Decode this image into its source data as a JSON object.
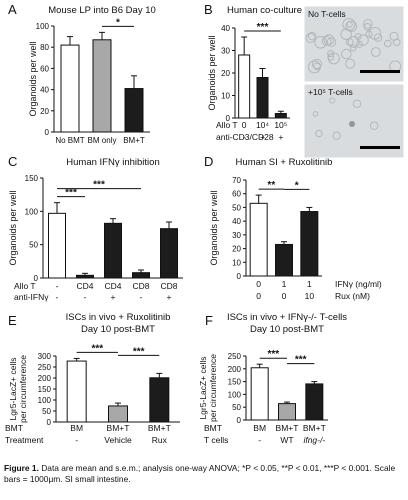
{
  "colors": {
    "bar_white": "#ffffff",
    "bar_gray": "#a8a8a8",
    "bar_black": "#1c1c1c",
    "axis": "#111111",
    "micro_bg": "#d9dcde",
    "organoid": "#b2b7bb",
    "scale_bar": "#000000"
  },
  "caption": {
    "label": "Figure 1.",
    "text": "Data are mean and s.e.m.; analysis one-way ANOVA; *P < 0.05, **P < 0.01, ***P < 0.001. Scale bars = 1000μm. SI small intestine."
  },
  "panels": {
    "A": {
      "letter": "A"
    },
    "B": {
      "letter": "B",
      "img_top_label": "No T-cells",
      "img_bottom_label": "+10⁵ T-cells"
    },
    "C": {
      "letter": "C"
    },
    "D": {
      "letter": "D"
    },
    "E": {
      "letter": "E"
    },
    "F": {
      "letter": "F"
    }
  },
  "chart_data": [
    {
      "panel": "A",
      "type": "bar",
      "title": "Mouse LP into B6 Day 10",
      "ylabel": "Organoids per well",
      "ylim": [
        0,
        100
      ],
      "yticks": [
        0,
        20,
        40,
        60,
        80,
        100
      ],
      "grid": false,
      "categories": [
        "No BMT",
        "BM only",
        "BM+T"
      ],
      "values": [
        82,
        87,
        41
      ],
      "errors": [
        8,
        7,
        12
      ],
      "fills": [
        "white",
        "gray",
        "black"
      ],
      "significance": [
        {
          "from": 1,
          "to": 2,
          "label": "*"
        }
      ]
    },
    {
      "panel": "B",
      "type": "bar",
      "title": "Human co-culture",
      "ylabel": "Organoids per well",
      "ylim": [
        0,
        40
      ],
      "yticks": [
        0,
        10,
        20,
        30,
        40
      ],
      "grid": false,
      "categories": [
        "0",
        "10⁴",
        "10⁵"
      ],
      "values": [
        28,
        18,
        2
      ],
      "errors": [
        8,
        4,
        1
      ],
      "fills": [
        "white",
        "black",
        "black"
      ],
      "row_labels": [
        {
          "label": "Allo T",
          "values": [
            "0",
            "10⁴",
            "10⁵"
          ]
        },
        {
          "label": "anti-CD3/CD28",
          "values": [
            "-",
            "+",
            "+"
          ]
        }
      ],
      "significance": [
        {
          "from": 0,
          "to": 2,
          "label": "***"
        }
      ]
    },
    {
      "panel": "C",
      "type": "bar",
      "title": "Human IFNγ inhibition",
      "ylabel": "Organoids per well",
      "ylim": [
        0,
        150
      ],
      "yticks": [
        0,
        50,
        100,
        150
      ],
      "grid": false,
      "categories": [
        "-",
        "CD4",
        "CD4",
        "CD8",
        "CD8"
      ],
      "values": [
        97,
        4,
        82,
        8,
        74
      ],
      "errors": [
        16,
        3,
        7,
        4,
        10
      ],
      "fills": [
        "white",
        "black",
        "black",
        "black",
        "black"
      ],
      "row_labels": [
        {
          "label": "Allo T",
          "values": [
            "-",
            "CD4",
            "CD4",
            "CD8",
            "CD8"
          ]
        },
        {
          "label": "anti-IFNγ",
          "values": [
            "-",
            "-",
            "+",
            "-",
            "+"
          ]
        }
      ],
      "significance": [
        {
          "from": 0,
          "to": 1,
          "label": "***"
        },
        {
          "from": 0,
          "to": 3,
          "label": "***"
        }
      ]
    },
    {
      "panel": "D",
      "type": "bar",
      "title": "Human SI + Ruxolitinib",
      "ylabel": "Organoids per well",
      "ylim": [
        0,
        70
      ],
      "yticks": [
        0,
        10,
        20,
        30,
        40,
        50,
        60,
        70
      ],
      "grid": false,
      "categories": [
        "0",
        "1",
        "1"
      ],
      "values": [
        53,
        23,
        47
      ],
      "errors": [
        6,
        2,
        3
      ],
      "fills": [
        "white",
        "black",
        "black"
      ],
      "row_labels": [
        {
          "label": "IFNγ (ng/ml)",
          "values": [
            "0",
            "1",
            "1"
          ]
        },
        {
          "label": "Rux (nM)",
          "values": [
            "0",
            "0",
            "10"
          ]
        }
      ],
      "significance": [
        {
          "from": 0,
          "to": 1,
          "label": "**"
        },
        {
          "from": 1,
          "to": 2,
          "label": "*"
        }
      ]
    },
    {
      "panel": "E",
      "type": "bar",
      "title_line1": "ISCs in vivo + Ruxolitinib",
      "title_line2": "Day 10 post-BMT",
      "ylabel": "Lgr5-LacZ+ cells per circumference",
      "ylim": [
        0,
        300
      ],
      "yticks": [
        0,
        50,
        100,
        150,
        200,
        250,
        300
      ],
      "grid": false,
      "categories": [
        "BM",
        "BM+T",
        "BM+T"
      ],
      "values": [
        277,
        73,
        201
      ],
      "errors": [
        12,
        13,
        20
      ],
      "fills": [
        "white",
        "gray",
        "black"
      ],
      "row_labels": [
        {
          "label": "BMT",
          "values": [
            "BM",
            "BM+T",
            "BM+T"
          ]
        },
        {
          "label": "Treatment",
          "values": [
            "-",
            "Vehicle",
            "Rux"
          ]
        }
      ],
      "significance": [
        {
          "from": 0,
          "to": 1,
          "label": "***"
        },
        {
          "from": 1,
          "to": 2,
          "label": "***"
        }
      ]
    },
    {
      "panel": "F",
      "type": "bar",
      "title_line1": "ISCs in vivo + IFNγ-/- T-cells",
      "title_line2": "Day 10 post-BMT",
      "ylabel": "Lgr5-LacZ+ cells per circumference",
      "ylim": [
        0,
        250
      ],
      "yticks": [
        0,
        50,
        100,
        150,
        200,
        250
      ],
      "grid": false,
      "categories": [
        "BM",
        "BM+T",
        "BM+T"
      ],
      "values": [
        204,
        64,
        141
      ],
      "errors": [
        14,
        6,
        9
      ],
      "fills": [
        "white",
        "gray",
        "black"
      ],
      "row_labels": [
        {
          "label": "BMT",
          "values": [
            "BM",
            "BM+T",
            "BM+T"
          ]
        },
        {
          "label": "T cells",
          "values": [
            "-",
            "WT",
            "ifng-/-"
          ]
        }
      ],
      "significance": [
        {
          "from": 0,
          "to": 1,
          "label": "***"
        },
        {
          "from": 1,
          "to": 2,
          "label": "***"
        }
      ]
    }
  ]
}
